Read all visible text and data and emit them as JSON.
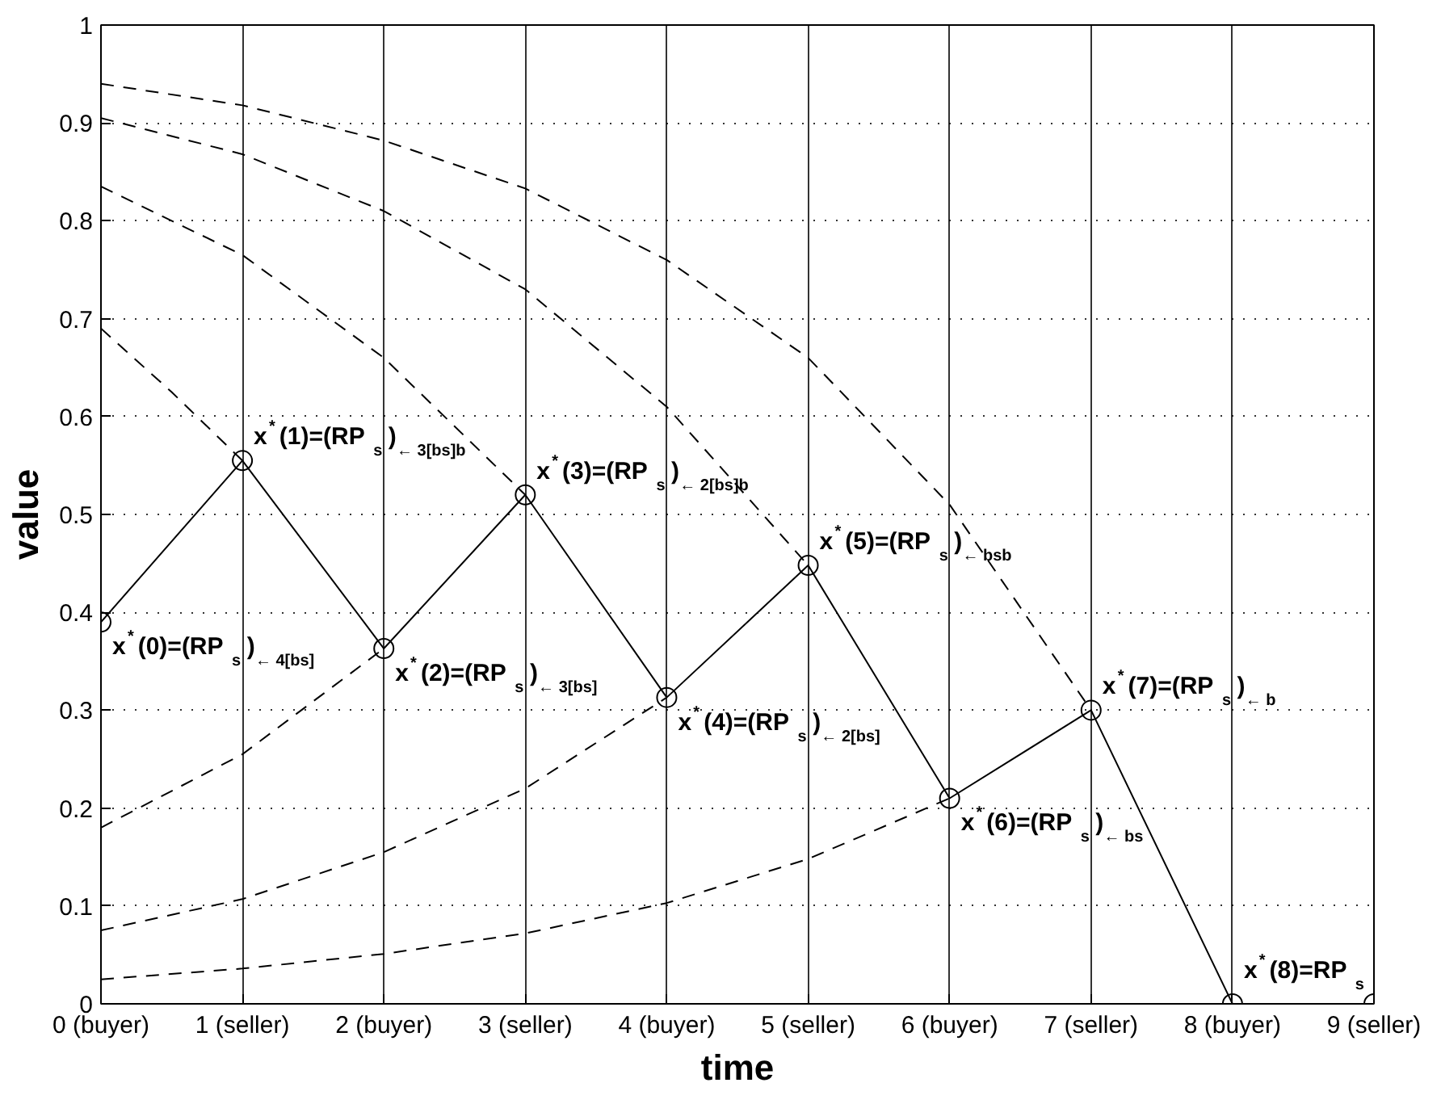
{
  "chart_data": {
    "type": "line",
    "xlabel": "time",
    "ylabel": "value",
    "xlim": [
      0,
      9
    ],
    "xticks": [
      {
        "value": 0,
        "label": "0 (buyer)"
      },
      {
        "value": 1,
        "label": "1 (seller)"
      },
      {
        "value": 2,
        "label": "2 (buyer)"
      },
      {
        "value": 3,
        "label": "3 (seller)"
      },
      {
        "value": 4,
        "label": "4 (buyer)"
      },
      {
        "value": 5,
        "label": "5 (seller)"
      },
      {
        "value": 6,
        "label": "6 (buyer)"
      },
      {
        "value": 7,
        "label": "7 (seller)"
      },
      {
        "value": 8,
        "label": "8 (buyer)"
      },
      {
        "value": 9,
        "label": "9 (seller)"
      }
    ],
    "ylim": [
      0,
      1
    ],
    "yticks": [
      0,
      0.1,
      0.2,
      0.3,
      0.4,
      0.5,
      0.6,
      0.7,
      0.8,
      0.9,
      1
    ],
    "grid": true,
    "series": [
      {
        "color": "#000000",
        "marker": "circle",
        "line_style": "solid",
        "x": [
          0,
          1,
          2,
          3,
          4,
          5,
          6,
          7,
          8
        ],
        "values": [
          0.39,
          0.555,
          0.363,
          0.52,
          0.313,
          0.448,
          0.21,
          0.3,
          0.0
        ]
      },
      {
        "color": "#000000",
        "marker": "none",
        "line_style": "dashed",
        "x": [
          0,
          1,
          2,
          3,
          4,
          5,
          6,
          7
        ],
        "values": [
          0.94,
          0.918,
          0.882,
          0.833,
          0.76,
          0.66,
          0.51,
          0.3
        ]
      },
      {
        "color": "#000000",
        "marker": "none",
        "line_style": "dashed",
        "x": [
          0,
          1,
          2,
          3,
          4,
          5
        ],
        "values": [
          0.905,
          0.868,
          0.81,
          0.73,
          0.61,
          0.448
        ]
      },
      {
        "color": "#000000",
        "marker": "none",
        "line_style": "dashed",
        "x": [
          0,
          1,
          2,
          3
        ],
        "values": [
          0.835,
          0.765,
          0.66,
          0.52
        ]
      },
      {
        "color": "#000000",
        "marker": "none",
        "line_style": "dashed",
        "x": [
          0,
          0.5,
          1
        ],
        "values": [
          0.69,
          0.625,
          0.555
        ]
      },
      {
        "color": "#000000",
        "marker": "none",
        "line_style": "dashed",
        "x": [
          0,
          1,
          2
        ],
        "values": [
          0.18,
          0.255,
          0.363
        ]
      },
      {
        "color": "#000000",
        "marker": "none",
        "line_style": "dashed",
        "x": [
          0,
          1,
          2,
          3,
          4
        ],
        "values": [
          0.075,
          0.107,
          0.155,
          0.22,
          0.313
        ]
      },
      {
        "color": "#000000",
        "marker": "none",
        "line_style": "dashed",
        "x": [
          0,
          1,
          2,
          3,
          4,
          5,
          6
        ],
        "values": [
          0.025,
          0.036,
          0.051,
          0.072,
          0.103,
          0.148,
          0.21
        ]
      },
      {
        "type": "scatter",
        "color": "#000000",
        "marker": "circle",
        "x": [
          9
        ],
        "values": [
          0.0
        ]
      }
    ],
    "annotations": [
      {
        "text": "x$^{*}$(0)=(RP$_{s}$)$_{← 4[bs]}$",
        "x": 0,
        "y": 0.39
      },
      {
        "text": "x$^{*}$(1)=(RP$_{s}$)$_{← 3[bs]b}$",
        "x": 1,
        "y": 0.555
      },
      {
        "text": "x$^{*}$(2)=(RP$_{s}$)$_{← 3[bs]}$",
        "x": 2,
        "y": 0.363
      },
      {
        "text": "x$^{*}$(3)=(RP$_{s}$)$_{← 2[bs]b}$",
        "x": 3,
        "y": 0.52
      },
      {
        "text": "x$^{*}$(4)=(RP$_{s}$)$_{← 2[bs]}$",
        "x": 4,
        "y": 0.313
      },
      {
        "text": "x$^{*}$(5)=(RP$_{s}$)$_{← bsb}$",
        "x": 5,
        "y": 0.448
      },
      {
        "text": "x$^{*}$(6)=(RP$_{s}$)$_{← bs}$",
        "x": 6,
        "y": 0.21
      },
      {
        "text": "x$^{*}$(7)=(RP$_{s}$)$_{← b}$",
        "x": 7,
        "y": 0.3
      },
      {
        "text": "x$^{*}$(8)=RP$_{s}$",
        "x": 8,
        "y": 0.0
      }
    ]
  }
}
